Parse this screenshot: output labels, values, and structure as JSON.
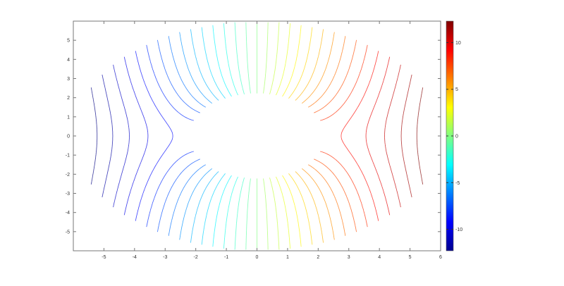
{
  "chart_data": {
    "type": "contour",
    "title": "",
    "xlabel": "",
    "ylabel": "",
    "xlim": [
      -6,
      6
    ],
    "ylim": [
      -6,
      6
    ],
    "xticks": [
      "-5",
      "-4",
      "-3",
      "-2",
      "-1",
      "0",
      "1",
      "2",
      "3",
      "4",
      "5",
      "6"
    ],
    "yticks": [
      "-5",
      "-4",
      "-3",
      "-2",
      "-1",
      "0",
      "1",
      "2",
      "3",
      "4",
      "5"
    ],
    "grid": false,
    "colormap": "jet",
    "clim": [
      -12.3,
      12.3
    ],
    "level_count": 31,
    "colorbar": {
      "position": "right",
      "ticks": [
        "-10",
        "-5",
        "0",
        "5",
        "10"
      ]
    }
  }
}
